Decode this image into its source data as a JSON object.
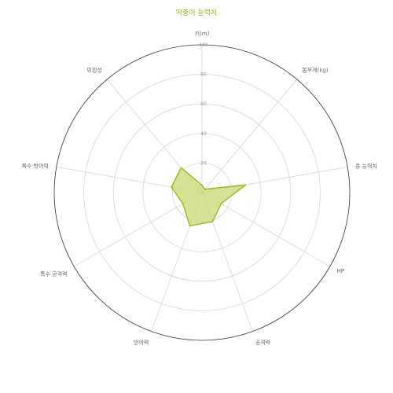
{
  "chart_data": {
    "type": "radar",
    "title": "딱충이 능력치",
    "axes": [
      "키(m)",
      "몸무게(kg)",
      "종 능력치",
      "HP",
      "공격력",
      "방어력",
      "특수 공격력",
      "특수 방어력",
      "민첩성"
    ],
    "rlim": [
      0,
      100
    ],
    "ticks": [
      "20",
      "40",
      "60",
      "80",
      "100"
    ],
    "tick_values": [
      20,
      40,
      60,
      80,
      100
    ],
    "values": [
      5,
      3,
      30,
      15,
      21,
      24,
      15,
      21,
      22
    ],
    "grid": true,
    "colors": {
      "fill": "#c8d873",
      "stroke": "#9ab21a",
      "title": "#9ab21a",
      "grid": "#d0d0d0",
      "outer": "#333333"
    }
  }
}
